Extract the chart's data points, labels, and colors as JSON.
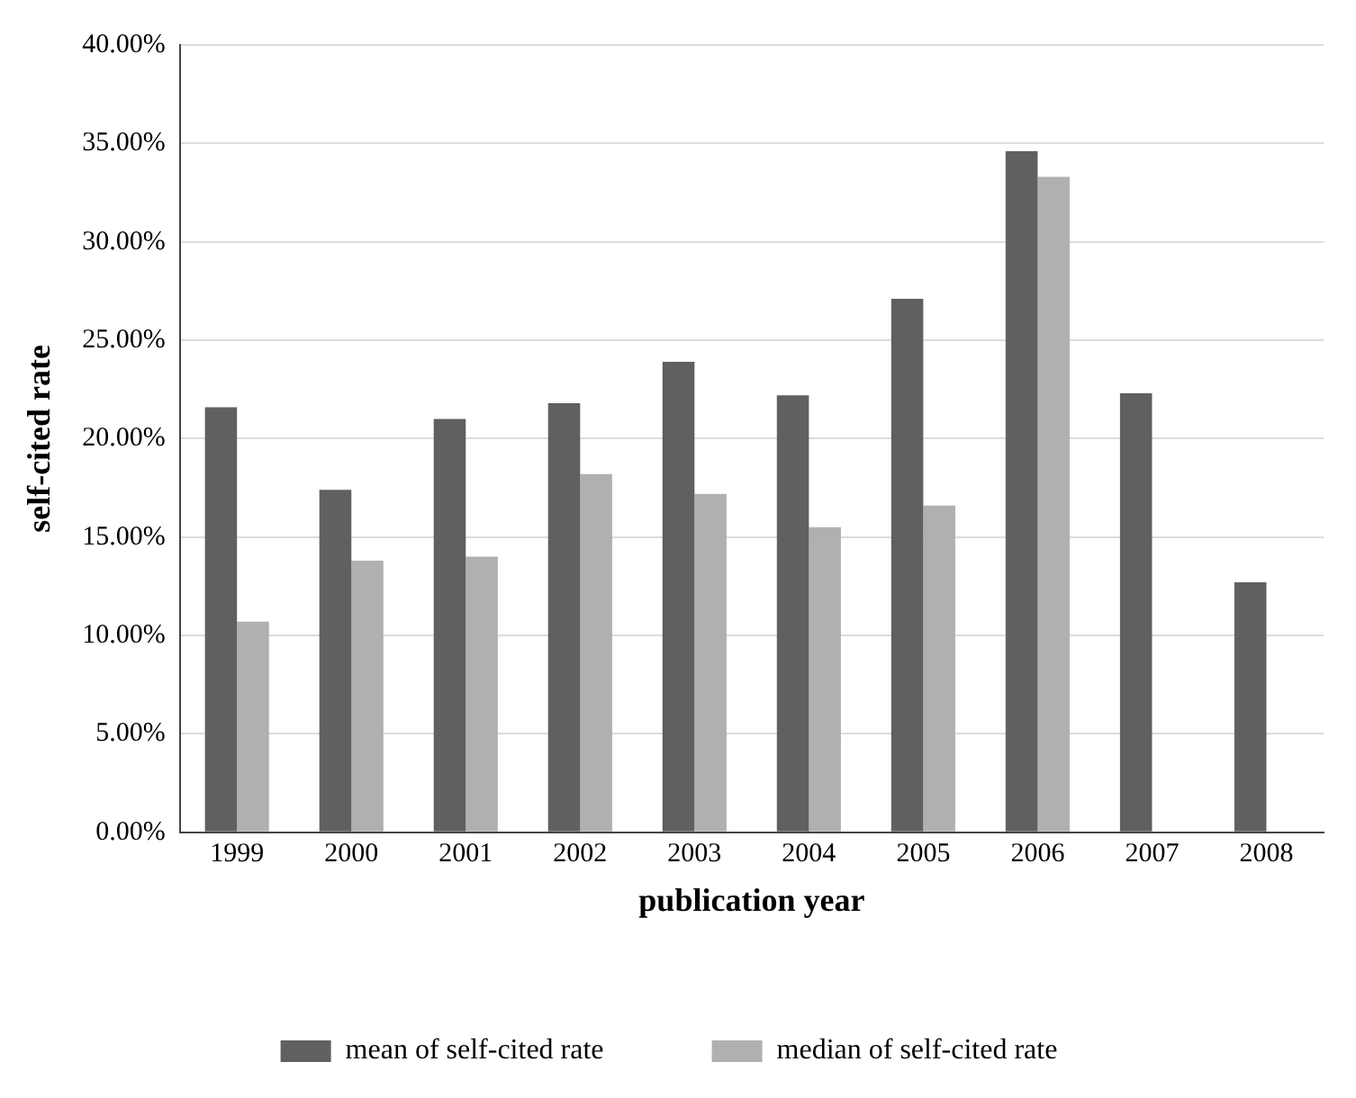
{
  "chart_data": {
    "type": "bar",
    "xlabel": "publication year",
    "ylabel": "self-cited rate",
    "categories": [
      "1999",
      "2000",
      "2001",
      "2002",
      "2003",
      "2004",
      "2005",
      "2006",
      "2007",
      "2008"
    ],
    "series": [
      {
        "name": "mean of self-cited rate",
        "color": "#606060",
        "values": [
          21.6,
          17.4,
          21.0,
          21.8,
          23.9,
          22.2,
          27.1,
          34.6,
          22.3,
          12.7
        ]
      },
      {
        "name": "median of self-cited rate",
        "color": "#b0b0b0",
        "values": [
          10.7,
          13.8,
          14.0,
          18.2,
          17.2,
          15.5,
          16.6,
          33.3,
          null,
          null
        ]
      }
    ],
    "ylim": [
      0,
      40
    ],
    "yticks": [
      {
        "value": 0,
        "label": "0.00%"
      },
      {
        "value": 5,
        "label": "5.00%"
      },
      {
        "value": 10,
        "label": "10.00%"
      },
      {
        "value": 15,
        "label": "15.00%"
      },
      {
        "value": 20,
        "label": "20.00%"
      },
      {
        "value": 25,
        "label": "25.00%"
      },
      {
        "value": 30,
        "label": "30.00%"
      },
      {
        "value": 35,
        "label": "35.00%"
      },
      {
        "value": 40,
        "label": "40.00%"
      }
    ],
    "grid": "y",
    "legend": "bottom"
  }
}
